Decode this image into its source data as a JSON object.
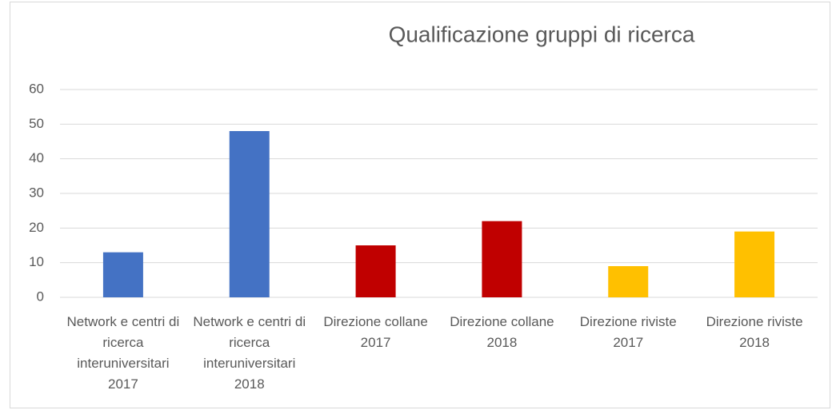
{
  "chart_data": {
    "type": "bar",
    "title": "Qualificazione gruppi di ricerca",
    "categories": [
      "Network e centri di ricerca interuniversitari 2017",
      "Network e centri di ricerca interuniversitari 2018",
      "Direzione collane 2017",
      "Direzione collane 2018",
      "Direzione riviste 2017",
      "Direzione riviste 2018"
    ],
    "values": [
      13,
      48,
      15,
      22,
      9,
      19
    ],
    "colors": [
      "#4472c4",
      "#4472c4",
      "#c00000",
      "#c00000",
      "#ffc000",
      "#ffc000"
    ],
    "ylim": [
      0,
      60
    ],
    "yticks": [
      0,
      10,
      20,
      30,
      40,
      50,
      60
    ],
    "grid": true
  }
}
